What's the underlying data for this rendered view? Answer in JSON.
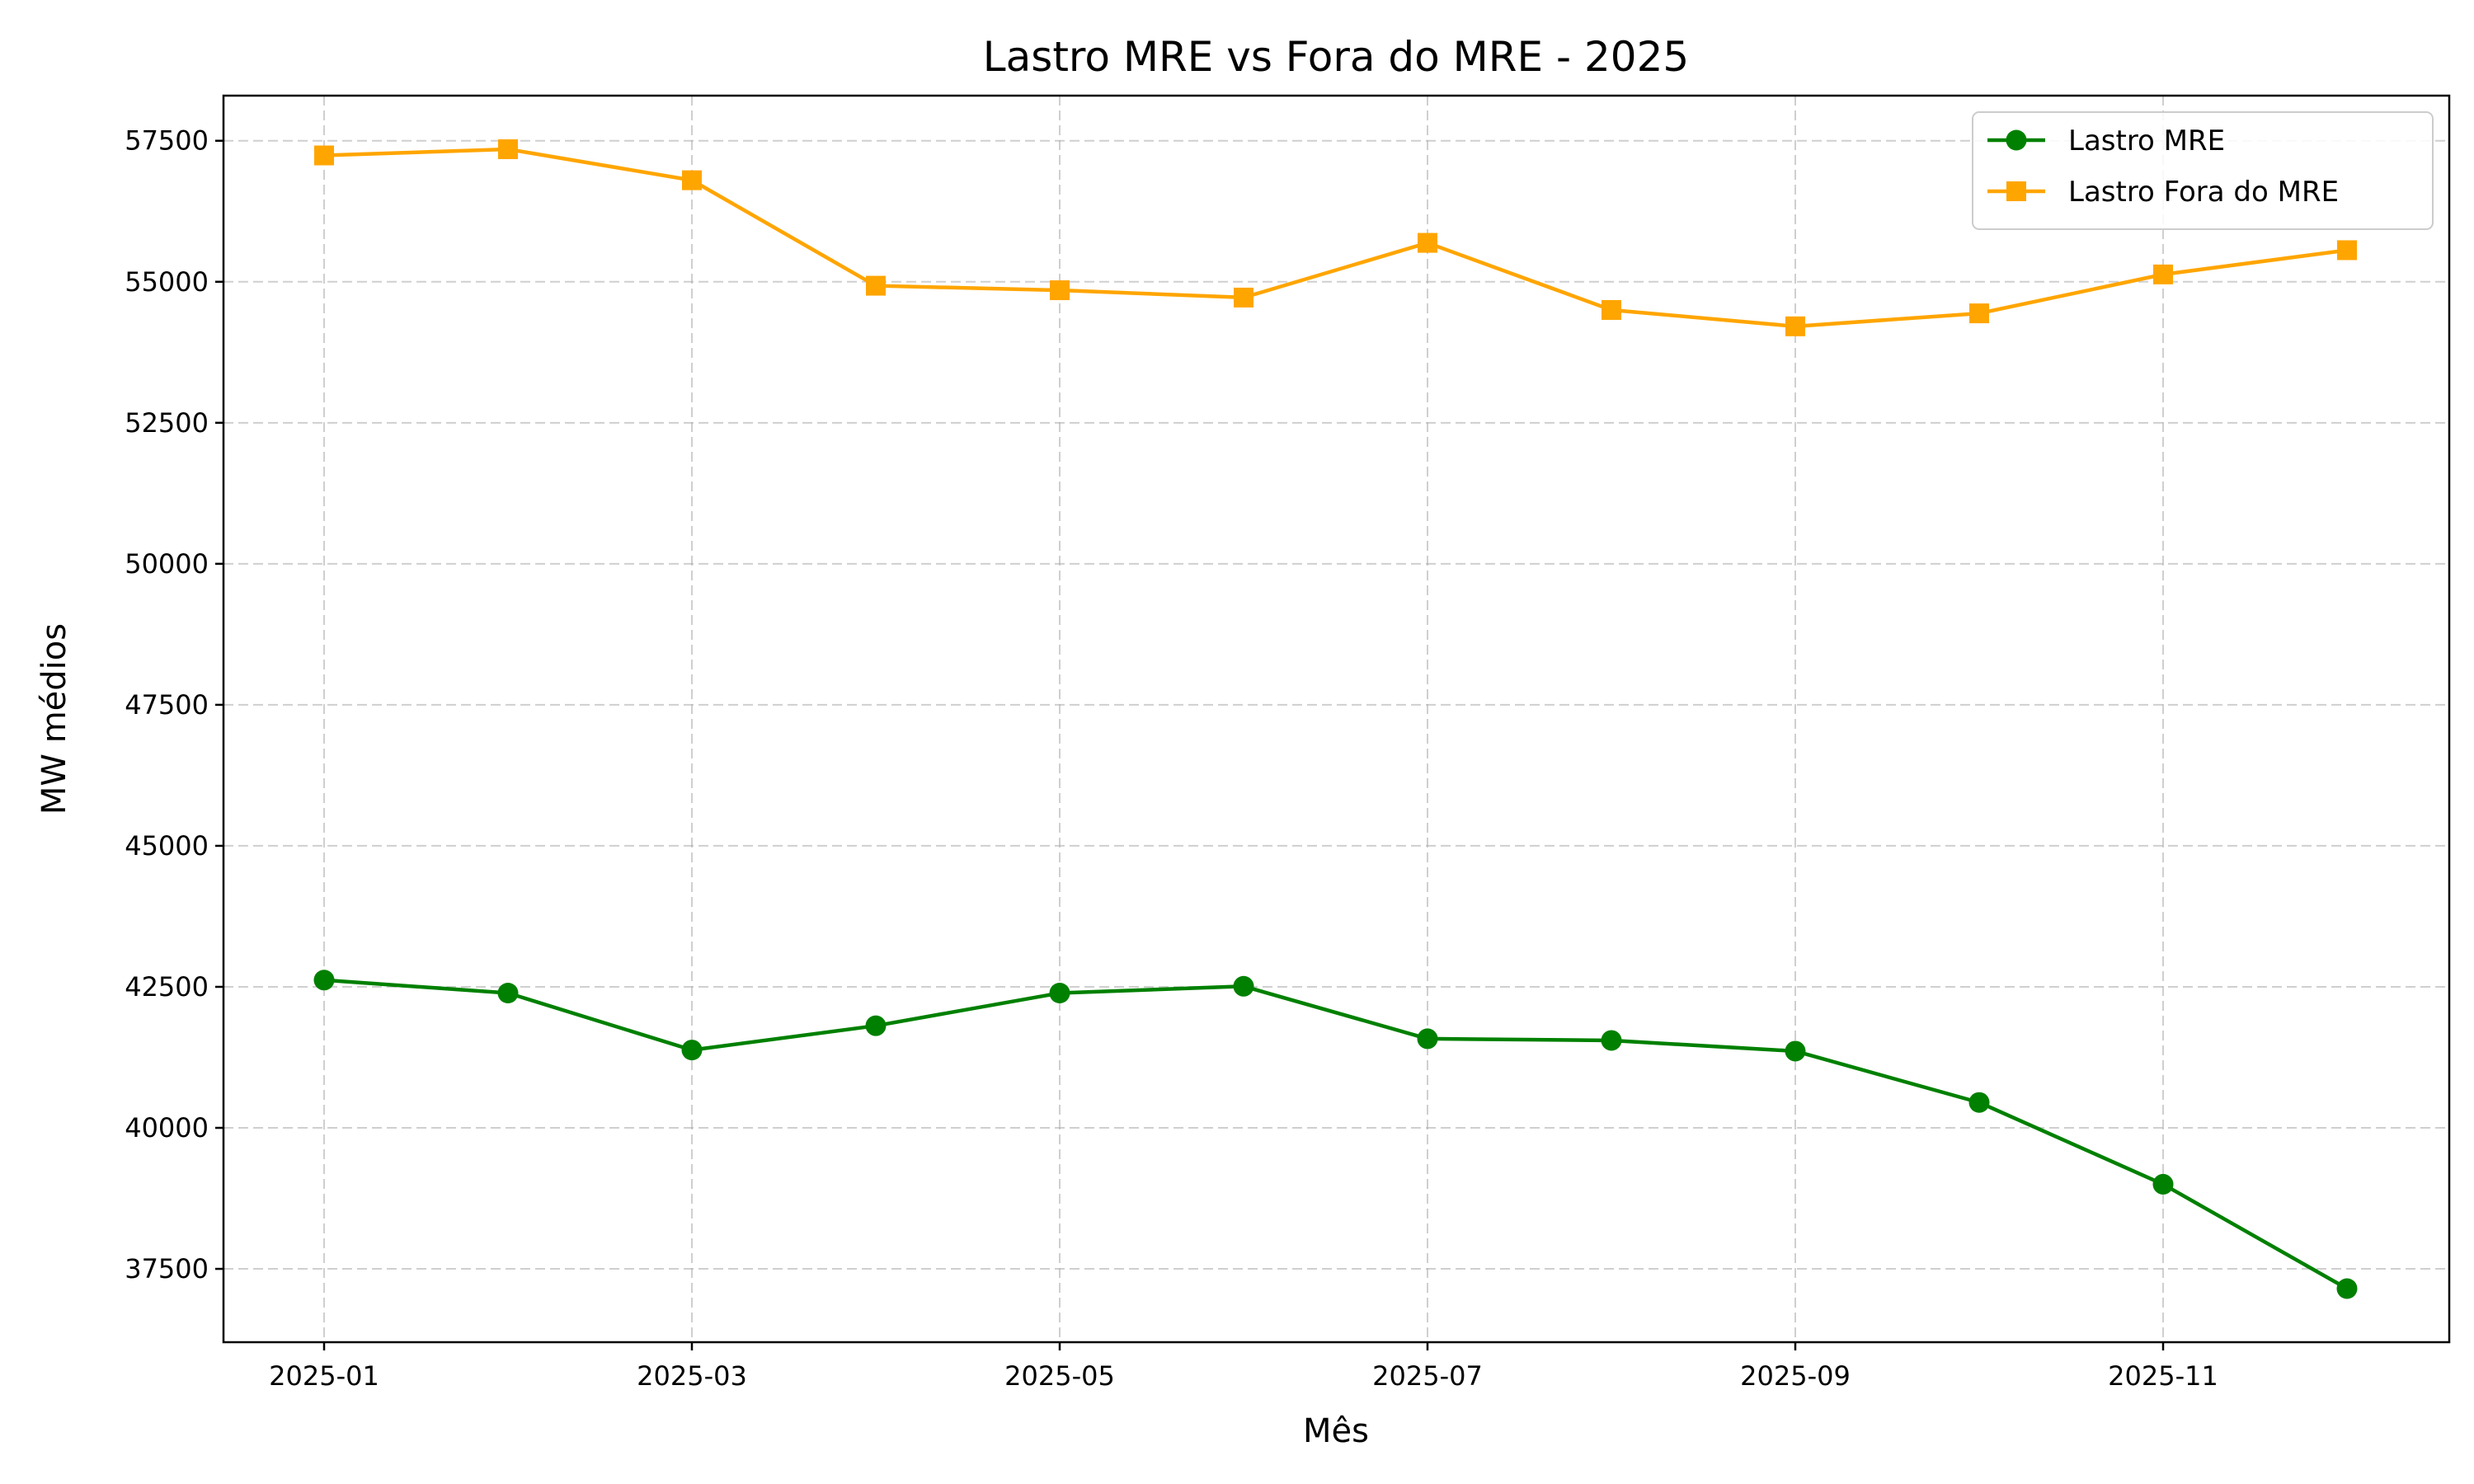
{
  "chart_data": {
    "type": "line",
    "title": "Lastro MRE vs Fora do MRE - 2025",
    "xlabel": "Mês",
    "ylabel": "MW médios",
    "x": [
      "2025-01",
      "2025-02",
      "2025-03",
      "2025-04",
      "2025-05",
      "2025-06",
      "2025-07",
      "2025-08",
      "2025-09",
      "2025-10",
      "2025-11",
      "2025-12"
    ],
    "x_tick_labels": [
      "2025-01",
      "2025-03",
      "2025-05",
      "2025-07",
      "2025-09",
      "2025-11"
    ],
    "y_ticks": [
      37500,
      40000,
      42500,
      45000,
      47500,
      50000,
      52500,
      55000,
      57500
    ],
    "ylim": [
      36200,
      58300
    ],
    "grid": true,
    "legend_position": "top-right",
    "series": [
      {
        "name": "Lastro MRE",
        "color": "#008000",
        "marker": "circle",
        "values": [
          42620,
          42390,
          41380,
          41810,
          42390,
          42510,
          41580,
          41550,
          41360,
          40450,
          39000,
          37150
        ]
      },
      {
        "name": "Lastro Fora do MRE",
        "color": "#FFA500",
        "marker": "square",
        "values": [
          57240,
          57350,
          56800,
          54930,
          54850,
          54720,
          55690,
          54500,
          54210,
          54440,
          55130,
          55560
        ]
      }
    ]
  }
}
